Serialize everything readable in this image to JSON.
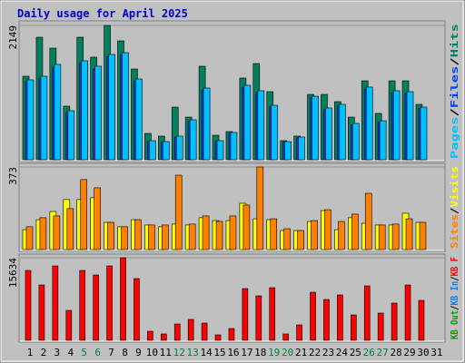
{
  "chart_data": [
    {
      "type": "bar",
      "title": "Daily usage for April 2025",
      "ylim": [
        0,
        2149
      ],
      "yticks": [
        2149
      ],
      "legend_separator": "/",
      "series": [
        {
          "name": "Hits",
          "color": "#00805c",
          "values": [
            1336,
            1960,
            1786,
            857,
            1960,
            1641,
            2149,
            1902,
            1452,
            421,
            378,
            842,
            682,
            1496,
            392,
            450,
            1307,
            1539,
            1089,
            305,
            378,
            1045,
            1045,
            929,
            682,
            1263,
            741,
            1263,
            1263,
            886,
            null
          ]
        },
        {
          "name": "Files",
          "color": "#0040ff",
          "values": [
            1250,
            1300,
            1480,
            760,
            1540,
            1450,
            1650,
            1680,
            1260,
            290,
            280,
            360,
            620,
            1110,
            295,
            420,
            1160,
            1080,
            850,
            280,
            350,
            990,
            800,
            860,
            560,
            1130,
            600,
            1070,
            1060,
            820,
            null
          ]
        },
        {
          "name": "Pages",
          "color": "#00c0ff",
          "values": [
            1278,
            1336,
            1525,
            784,
            1583,
            1496,
            1684,
            1713,
            1292,
            305,
            290,
            378,
            639,
            1147,
            305,
            436,
            1191,
            1104,
            871,
            290,
            363,
            1016,
            828,
            886,
            581,
            1162,
            624,
            1104,
            1089,
            842,
            null
          ]
        }
      ]
    },
    {
      "type": "bar",
      "ylim": [
        0,
        373
      ],
      "yticks": [
        373
      ],
      "legend_separator": "/",
      "series": [
        {
          "name": "Visits",
          "color": "#ffff00",
          "values": [
            90,
            135,
            172,
            226,
            226,
            234,
            123,
            103,
            135,
            111,
            103,
            115,
            111,
            144,
            131,
            131,
            209,
            139,
            135,
            86,
            86,
            127,
            176,
            90,
            144,
            119,
            111,
            111,
            164,
            123,
            null
          ]
        },
        {
          "name": "Sites",
          "color": "#ff8000",
          "values": [
            103,
            144,
            152,
            185,
            316,
            279,
            123,
            103,
            135,
            111,
            111,
            336,
            115,
            152,
            127,
            152,
            201,
            373,
            139,
            94,
            86,
            131,
            180,
            127,
            160,
            254,
            111,
            115,
            139,
            123,
            null
          ]
        }
      ]
    },
    {
      "type": "bar",
      "ylim": [
        0,
        15634
      ],
      "yticks": [
        15634
      ],
      "legend_separator": "/",
      "categories": [
        "1",
        "2",
        "3",
        "4",
        "5",
        "6",
        "7",
        "8",
        "9",
        "10",
        "11",
        "12",
        "13",
        "14",
        "15",
        "16",
        "17",
        "18",
        "19",
        "20",
        "21",
        "22",
        "23",
        "24",
        "25",
        "26",
        "27",
        "28",
        "29",
        "30",
        "31"
      ],
      "category_colors": [
        "#000",
        "#000",
        "#000",
        "#000",
        "#008040",
        "#008040",
        "#000",
        "#000",
        "#000",
        "#000",
        "#000",
        "#008040",
        "#008040",
        "#000",
        "#000",
        "#000",
        "#000",
        "#000",
        "#008040",
        "#008040",
        "#000",
        "#000",
        "#000",
        "#000",
        "#000",
        "#008040",
        "#008040",
        "#000",
        "#000",
        "#000",
        "#000"
      ],
      "series": [
        {
          "name": "KB F",
          "color": "#ff0000",
          "values": [
            13229,
            10480,
            14088,
            5669,
            13229,
            12370,
            14088,
            15634,
            11682,
            1718,
            1203,
            3092,
            3951,
            3264,
            1031,
            2233,
            9793,
            8418,
            9964,
            1203,
            2921,
            9105,
            7731,
            8590,
            4810,
            10308,
            5154,
            7044,
            10480,
            7559,
            null
          ]
        }
      ],
      "extra_legend": [
        {
          "name": "KB In",
          "color": "#0080ff"
        },
        {
          "name": "KB Out",
          "color": "#00a000"
        }
      ]
    }
  ]
}
